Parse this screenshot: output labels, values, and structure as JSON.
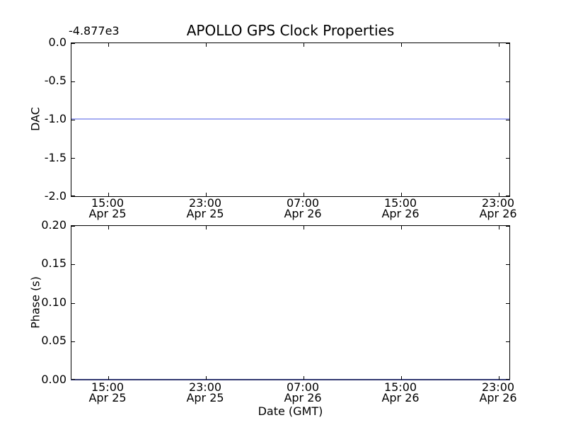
{
  "title": "APOLLO GPS Clock Properties",
  "top_plot": {
    "offset_text": "-4.877e3",
    "ylabel": "DAC",
    "yticks": [
      "0.0",
      "-0.5",
      "-1.0",
      "-1.5",
      "-2.0"
    ],
    "line_color": "#a6adf2",
    "line_value": -1.0
  },
  "bottom_plot": {
    "ylabel": "Phase (s)",
    "yticks": [
      "0.20",
      "0.15",
      "0.10",
      "0.05",
      "0.00"
    ],
    "line_color": "#343a72",
    "line_value": 0.0
  },
  "x_axis": {
    "label": "Date (GMT)",
    "ticks": [
      {
        "time": "15:00",
        "date": "Apr 25"
      },
      {
        "time": "23:00",
        "date": "Apr 25"
      },
      {
        "time": "07:00",
        "date": "Apr 26"
      },
      {
        "time": "15:00",
        "date": "Apr 26"
      },
      {
        "time": "23:00",
        "date": "Apr 26"
      }
    ]
  },
  "colors": {
    "background": "#ffffff",
    "spine": "#000000",
    "dac_line": "#a6adf2",
    "phase_line": "#343a72"
  },
  "chart_data": [
    {
      "type": "line",
      "subplot": "top",
      "title": "APOLLO GPS Clock Properties",
      "xlabel": "",
      "ylabel": "DAC",
      "y_offset_text": "-4.877e3",
      "ylim": [
        -2.0,
        0.0
      ],
      "yticks": [
        0.0,
        -0.5,
        -1.0,
        -1.5,
        -2.0
      ],
      "xticks": [
        "15:00 Apr 25",
        "23:00 Apr 25",
        "07:00 Apr 26",
        "15:00 Apr 26",
        "23:00 Apr 26"
      ],
      "x_tick_interval_hours": 8,
      "grid": false,
      "legend": null,
      "series": [
        {
          "name": "DAC",
          "color": "#aab0f0",
          "style": "solid",
          "y_constant": -1.0,
          "shape": "flat horizontal line spanning the full x-range at y = -1.0 (true value about -4878 given axis offset -4.877e3)"
        }
      ]
    },
    {
      "type": "line",
      "subplot": "bottom",
      "title": "",
      "xlabel": "Date (GMT)",
      "ylabel": "Phase (s)",
      "ylim": [
        0.0,
        0.2
      ],
      "yticks": [
        0.2,
        0.15,
        0.1,
        0.05,
        0.0
      ],
      "xticks": [
        "15:00 Apr 25",
        "23:00 Apr 25",
        "07:00 Apr 26",
        "15:00 Apr 26",
        "23:00 Apr 26"
      ],
      "x_tick_interval_hours": 8,
      "grid": false,
      "legend": null,
      "series": [
        {
          "name": "Phase",
          "color": "#3b4284",
          "style": "solid",
          "y_constant": 0.0,
          "shape": "flat horizontal line at y = 0.00 lying on top of the bottom axis spine"
        }
      ]
    }
  ]
}
